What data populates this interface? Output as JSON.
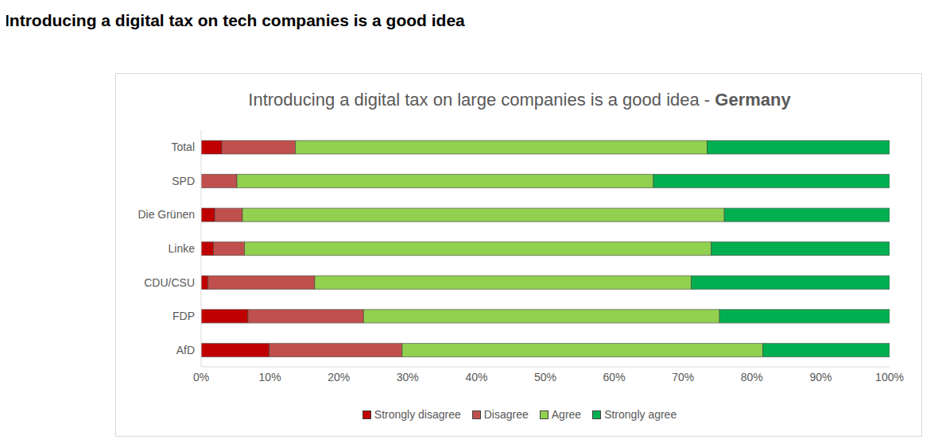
{
  "heading": "Introducing a digital tax on tech companies is a good idea",
  "chart_data": {
    "type": "bar",
    "title": "Introducing a digital tax on large companies is a good idea - Germany",
    "orientation": "horizontal",
    "stacked": true,
    "grid": false,
    "legend": "bottom",
    "categories": [
      "Total",
      "SPD",
      "Die Grünen",
      "Linke",
      "CDU/CSU",
      "FDP",
      "AfD"
    ],
    "series": [
      {
        "name": "Strongly disagree",
        "color": "#C00000",
        "values": [
          3,
          0,
          2,
          1.8,
          1,
          6.8,
          9.9
        ]
      },
      {
        "name": "Disagree",
        "color": "#C0504D",
        "values": [
          10.7,
          5.2,
          4,
          4.5,
          15.5,
          16.8,
          19.3
        ]
      },
      {
        "name": "Agree",
        "color": "#92D050",
        "values": [
          59.8,
          60.5,
          70,
          67.8,
          54.7,
          51.7,
          52.4
        ]
      },
      {
        "name": "Strongly agree",
        "color": "#00B050",
        "values": [
          26.5,
          34.3,
          24,
          25.9,
          28.8,
          24.7,
          18.4
        ]
      }
    ],
    "xlim": [
      0,
      100
    ],
    "xticks": [
      {
        "value": 0,
        "label": "0%"
      },
      {
        "value": 10,
        "label": "10%"
      },
      {
        "value": 20,
        "label": "20%"
      },
      {
        "value": 30,
        "label": "30%"
      },
      {
        "value": 40,
        "label": "40%"
      },
      {
        "value": 50,
        "label": "50%"
      },
      {
        "value": 60,
        "label": "60%"
      },
      {
        "value": 70,
        "label": "70%"
      },
      {
        "value": 80,
        "label": "80%"
      },
      {
        "value": 90,
        "label": "90%"
      },
      {
        "value": 100,
        "label": "100%"
      }
    ]
  }
}
